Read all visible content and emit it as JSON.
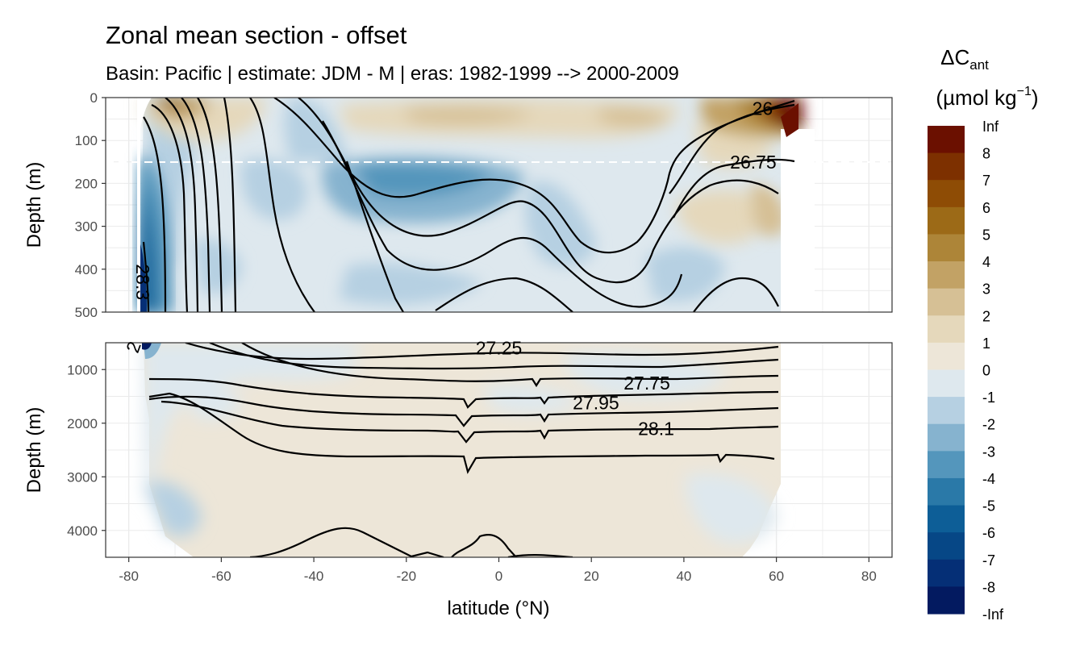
{
  "chart_data": {
    "type": "heatmap",
    "title": "Zonal mean section - offset",
    "subtitle": "Basin: Pacific | estimate: JDM - M | eras: 1982-1999 --> 2000-2009",
    "xlabel": "latitude (°N)",
    "ylabel": "Depth (m)",
    "xlim": [
      -85,
      85
    ],
    "x_ticks": [
      -80,
      -60,
      -40,
      -20,
      0,
      20,
      40,
      60,
      80
    ],
    "panels": [
      {
        "name": "upper",
        "ylim": [
          0,
          500
        ],
        "y_ticks": [
          0,
          100,
          200,
          300,
          400,
          500
        ],
        "reversed": true
      },
      {
        "name": "lower",
        "ylim": [
          500,
          4500
        ],
        "y_ticks": [
          1000,
          2000,
          3000,
          4000
        ],
        "reversed": true
      }
    ],
    "reference_depth_line": 150,
    "legend": {
      "position": "right",
      "title_main": "ΔC",
      "title_sub": "ant",
      "units_prefix": "(µmol kg",
      "units_sup": "−1",
      "units_suffix": ")",
      "labels": [
        "Inf",
        "8",
        "7",
        "6",
        "5",
        "4",
        "3",
        "2",
        "1",
        "0",
        "-1",
        "-2",
        "-3",
        "-4",
        "-5",
        "-6",
        "-7",
        "-8",
        "-Inf"
      ],
      "colors": [
        "#6b1000",
        "#7d3000",
        "#8e4c05",
        "#9c6a17",
        "#ad8538",
        "#c2a265",
        "#d6c095",
        "#e5d8bb",
        "#ede6d8",
        "#dee8ee",
        "#b6d0e2",
        "#86b3cf",
        "#5496bc",
        "#2a79a8",
        "#0d5e97",
        "#064786",
        "#052f76",
        "#031a60"
      ]
    },
    "isopycnal_labels": [
      {
        "text": "26",
        "lat": 57,
        "depth": 25
      },
      {
        "text": "26.75",
        "lat": 55,
        "depth": 150
      },
      {
        "text": "28.3",
        "lat": -77,
        "depth": 430
      },
      {
        "text": "2",
        "lat": -79,
        "depth": 580
      },
      {
        "text": "27.25",
        "lat": 0,
        "depth": 600
      },
      {
        "text": "27.75",
        "lat": 32,
        "depth": 1250
      },
      {
        "text": "27.95",
        "lat": 21,
        "depth": 1620
      },
      {
        "text": "28.1",
        "lat": 34,
        "depth": 2100
      }
    ]
  }
}
